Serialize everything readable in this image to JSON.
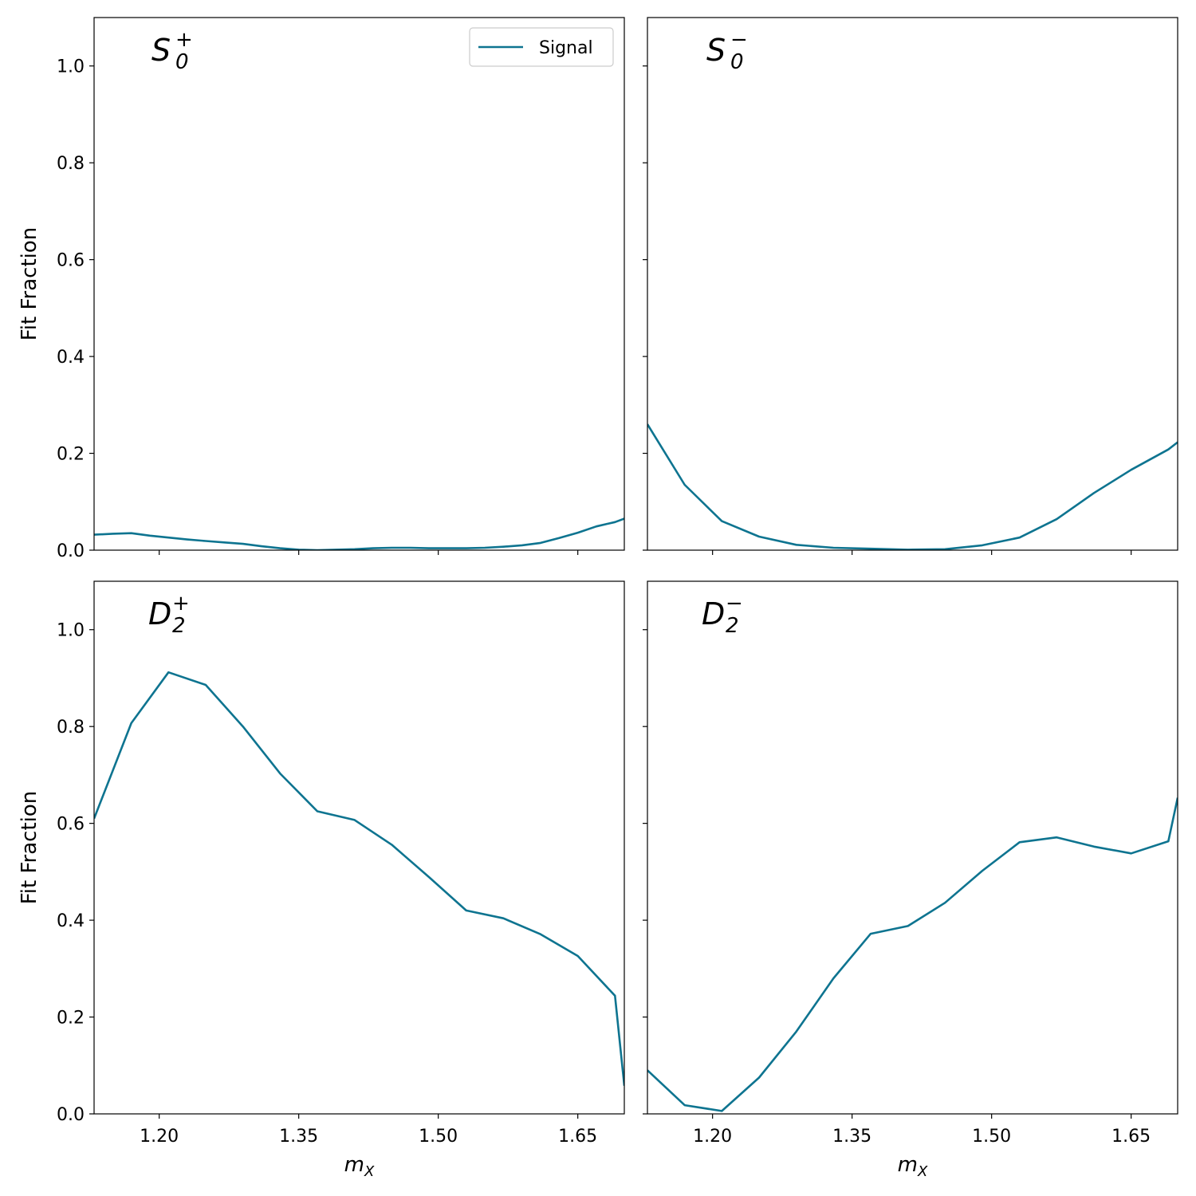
{
  "colors": {
    "signal": "#0e7490",
    "frame": "#000000"
  },
  "legend": {
    "label": "Signal",
    "placement": "upper-right of top-left panel"
  },
  "chart_data": [
    {
      "type": "line",
      "panel_label": {
        "base": "S",
        "sub": "0",
        "sup": "+"
      },
      "xlabel": "",
      "ylabel": "Fit Fraction",
      "xlim": [
        1.13,
        1.7
      ],
      "ylim": [
        0,
        1.1
      ],
      "xticks": [
        1.2,
        1.35,
        1.5,
        1.65
      ],
      "xtick_labels": [],
      "yticks": [
        0.0,
        0.2,
        0.4,
        0.6,
        0.8,
        1.0
      ],
      "ytick_labels": [
        "0.0",
        "0.2",
        "0.4",
        "0.6",
        "0.8",
        "1.0"
      ],
      "grid": false,
      "series": [
        {
          "name": "Signal",
          "x": [
            1.13,
            1.15,
            1.17,
            1.19,
            1.21,
            1.23,
            1.25,
            1.27,
            1.29,
            1.31,
            1.33,
            1.35,
            1.37,
            1.39,
            1.41,
            1.43,
            1.45,
            1.47,
            1.49,
            1.51,
            1.53,
            1.55,
            1.57,
            1.59,
            1.61,
            1.63,
            1.65,
            1.67,
            1.69,
            1.7
          ],
          "y": [
            0.032,
            0.034,
            0.035,
            0.03,
            0.026,
            0.022,
            0.019,
            0.016,
            0.013,
            0.008,
            0.004,
            0.001,
            0.0,
            0.001,
            0.002,
            0.004,
            0.005,
            0.005,
            0.004,
            0.004,
            0.004,
            0.005,
            0.007,
            0.01,
            0.015,
            0.025,
            0.036,
            0.049,
            0.058,
            0.065
          ]
        }
      ]
    },
    {
      "type": "line",
      "panel_label": {
        "base": "S",
        "sub": "0",
        "sup": "−"
      },
      "xlabel": "",
      "ylabel": "",
      "xlim": [
        1.13,
        1.7
      ],
      "ylim": [
        0,
        1.1
      ],
      "xticks": [
        1.2,
        1.35,
        1.5,
        1.65
      ],
      "xtick_labels": [],
      "yticks": [
        0.0,
        0.2,
        0.4,
        0.6,
        0.8,
        1.0
      ],
      "ytick_labels": [],
      "grid": false,
      "series": [
        {
          "name": "Signal",
          "x": [
            1.13,
            1.17,
            1.21,
            1.25,
            1.29,
            1.33,
            1.37,
            1.41,
            1.45,
            1.49,
            1.53,
            1.57,
            1.61,
            1.65,
            1.69,
            1.7
          ],
          "y": [
            0.26,
            0.135,
            0.06,
            0.028,
            0.011,
            0.005,
            0.003,
            0.001,
            0.002,
            0.01,
            0.026,
            0.064,
            0.118,
            0.166,
            0.208,
            0.223
          ]
        }
      ]
    },
    {
      "type": "line",
      "panel_label": {
        "base": "D",
        "sub": "2",
        "sup": "+"
      },
      "xlabel": "m",
      "xlabel_sub": "X",
      "ylabel": "Fit Fraction",
      "xlim": [
        1.13,
        1.7
      ],
      "ylim": [
        0,
        1.1
      ],
      "xticks": [
        1.2,
        1.35,
        1.5,
        1.65
      ],
      "xtick_labels": [
        "1.20",
        "1.35",
        "1.50",
        "1.65"
      ],
      "yticks": [
        0.0,
        0.2,
        0.4,
        0.6,
        0.8,
        1.0
      ],
      "ytick_labels": [
        "0.0",
        "0.2",
        "0.4",
        "0.6",
        "0.8",
        "1.0"
      ],
      "grid": false,
      "series": [
        {
          "name": "Signal",
          "x": [
            1.13,
            1.17,
            1.21,
            1.25,
            1.29,
            1.33,
            1.37,
            1.41,
            1.45,
            1.49,
            1.53,
            1.57,
            1.61,
            1.65,
            1.69,
            1.7
          ],
          "y": [
            0.61,
            0.807,
            0.912,
            0.886,
            0.8,
            0.703,
            0.625,
            0.607,
            0.556,
            0.489,
            0.42,
            0.404,
            0.371,
            0.326,
            0.244,
            0.058
          ]
        }
      ]
    },
    {
      "type": "line",
      "panel_label": {
        "base": "D",
        "sub": "2",
        "sup": "−"
      },
      "xlabel": "m",
      "xlabel_sub": "X",
      "ylabel": "",
      "xlim": [
        1.13,
        1.7
      ],
      "ylim": [
        0,
        1.1
      ],
      "xticks": [
        1.2,
        1.35,
        1.5,
        1.65
      ],
      "xtick_labels": [
        "1.20",
        "1.35",
        "1.50",
        "1.65"
      ],
      "yticks": [
        0.0,
        0.2,
        0.4,
        0.6,
        0.8,
        1.0
      ],
      "ytick_labels": [],
      "grid": false,
      "series": [
        {
          "name": "Signal",
          "x": [
            1.13,
            1.17,
            1.21,
            1.25,
            1.29,
            1.33,
            1.37,
            1.41,
            1.45,
            1.49,
            1.53,
            1.57,
            1.61,
            1.65,
            1.69,
            1.7
          ],
          "y": [
            0.09,
            0.018,
            0.006,
            0.075,
            0.17,
            0.28,
            0.372,
            0.388,
            0.436,
            0.502,
            0.561,
            0.571,
            0.552,
            0.538,
            0.563,
            0.653
          ]
        }
      ]
    }
  ]
}
